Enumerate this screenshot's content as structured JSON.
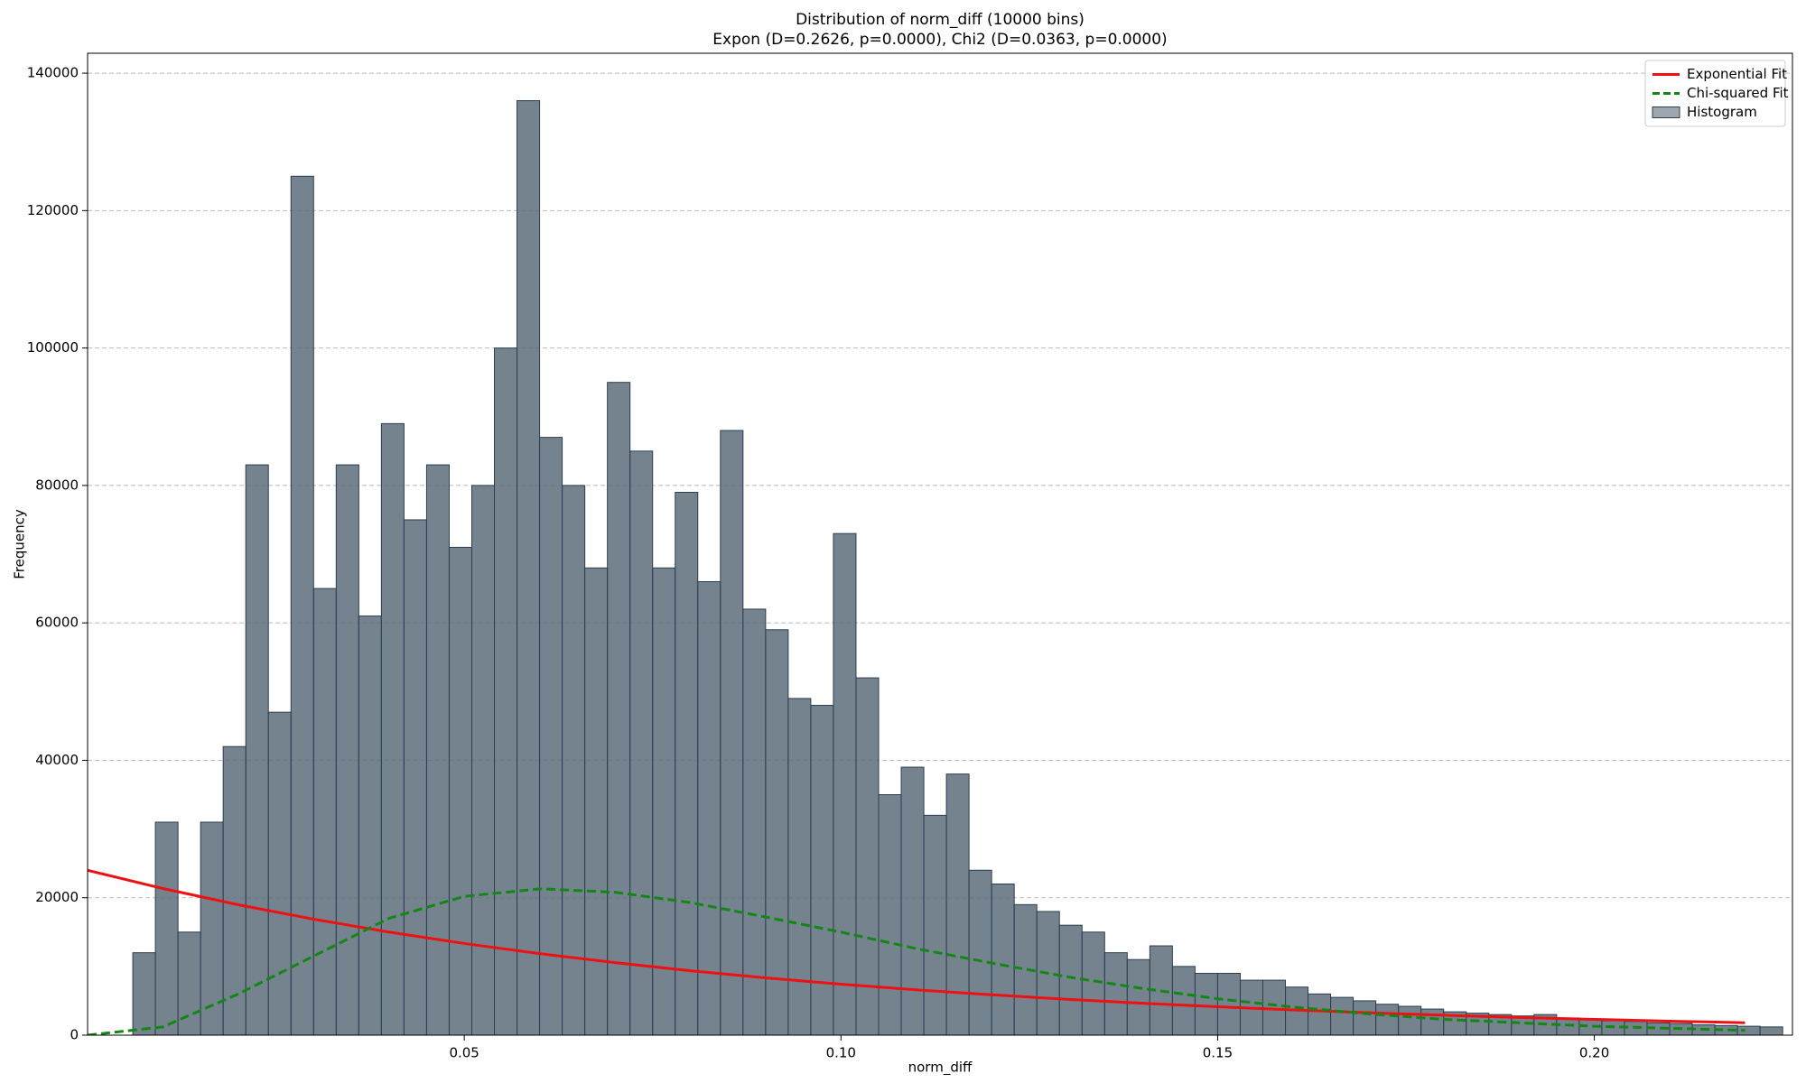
{
  "chart_data": {
    "type": "histogram",
    "title": "Distribution of norm_diff (10000 bins)",
    "subtitle": "Expon (D=0.2626, p=0.0000), Chi2 (D=0.0363, p=0.0000)",
    "x_label": "norm_diff",
    "y_label": "Frequency",
    "xlim": [
      0,
      0.2263
    ],
    "ylim": [
      0,
      142900
    ],
    "xticks": [
      0.05,
      {
        "value": 0.1,
        "label": "0.10"
      },
      0.15,
      {
        "value": 0.2,
        "label": "0.20"
      }
    ],
    "yticks": [
      0,
      20000,
      40000,
      60000,
      80000,
      100000,
      120000,
      140000
    ],
    "grid": true,
    "legend": "upper right",
    "histogram": {
      "name": "Histogram",
      "color": "#5d6d7b",
      "edgecolor": "#2c3e50",
      "bins": [
        0,
        0.003,
        0.006,
        0.009,
        0.012,
        0.015,
        0.018,
        0.021,
        0.024,
        0.027,
        0.03,
        0.033,
        0.036,
        0.039,
        0.042,
        0.045,
        0.048,
        0.051,
        0.054,
        0.057,
        0.06,
        0.063,
        0.066,
        0.069,
        0.072,
        0.075,
        0.078,
        0.081,
        0.084,
        0.087,
        0.09,
        0.093,
        0.096,
        0.099,
        0.102,
        0.105,
        0.108,
        0.111,
        0.114,
        0.117,
        0.12,
        0.123,
        0.126,
        0.129,
        0.132,
        0.135,
        0.138,
        0.141,
        0.144,
        0.147,
        0.15,
        0.153,
        0.156,
        0.159,
        0.162,
        0.165,
        0.168,
        0.171,
        0.174,
        0.177,
        0.18,
        0.183,
        0.186,
        0.189,
        0.192,
        0.195,
        0.198,
        0.201,
        0.204,
        0.207,
        0.21,
        0.213,
        0.216,
        0.219,
        0.222,
        0.225
      ],
      "counts": [
        0,
        0,
        12000,
        31000,
        15000,
        31000,
        42000,
        83000,
        47000,
        125000,
        65000,
        83000,
        61000,
        89000,
        75000,
        83000,
        71000,
        80000,
        100000,
        136000,
        87000,
        80000,
        68000,
        95000,
        85000,
        68000,
        79000,
        66000,
        88000,
        62000,
        59000,
        49000,
        48000,
        73000,
        52000,
        35000,
        39000,
        32000,
        38000,
        24000,
        22000,
        19000,
        18000,
        16000,
        15000,
        12000,
        11000,
        13000,
        10000,
        9000,
        9000,
        8000,
        8000,
        7000,
        6000,
        5500,
        5000,
        4500,
        4200,
        3800,
        3400,
        3200,
        3000,
        2800,
        3000,
        2500,
        2300,
        2100,
        2000,
        1800,
        1700,
        1500,
        1400,
        1300,
        1200
      ]
    },
    "x": [
      0,
      0.01,
      0.02,
      0.03,
      0.04,
      0.05,
      0.06,
      0.07,
      0.08,
      0.09,
      0.1,
      0.11,
      0.12,
      0.13,
      0.14,
      0.15,
      0.16,
      0.17,
      0.18,
      0.19,
      0.2,
      0.21,
      0.22
    ],
    "series": [
      {
        "name": "Exponential Fit",
        "color": "#ee1111",
        "dashed": false,
        "values": [
          24000,
          21340,
          18980,
          16880,
          15010,
          13340,
          11870,
          10550,
          9380,
          8340,
          7420,
          6600,
          5870,
          5220,
          4640,
          4130,
          3670,
          3260,
          2900,
          2580,
          2300,
          2040,
          1810
        ]
      },
      {
        "name": "Chi-squared Fit",
        "color": "#118811",
        "dashed": true,
        "values": [
          0,
          1200,
          6000,
          11500,
          17000,
          20200,
          21300,
          20800,
          19300,
          17200,
          15000,
          12600,
          10500,
          8500,
          6800,
          5300,
          4100,
          3100,
          2300,
          1800,
          1300,
          1000,
          700
        ]
      }
    ]
  }
}
